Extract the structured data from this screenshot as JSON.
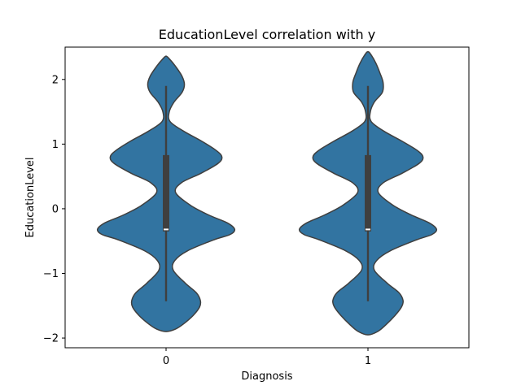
{
  "chart_data": {
    "type": "violin",
    "title": "EducationLevel correlation with y",
    "xlabel": "Diagnosis",
    "ylabel": "EducationLevel",
    "categories": [
      "0",
      "1"
    ],
    "xtick_labels": [
      "0",
      "1"
    ],
    "ylim": [
      -2.15,
      2.5
    ],
    "yticks": [
      -2,
      -1,
      0,
      1,
      2
    ],
    "ytick_labels": [
      "−2",
      "−1",
      "0",
      "1",
      "2"
    ],
    "grid": false,
    "legend": "none",
    "colors": {
      "fill": "#3274a1",
      "edge": "#3f3f3f",
      "box": "#3f3f3f",
      "median": "#ffffff"
    },
    "violins": [
      {
        "category": "0",
        "min": -1.43,
        "q1": -0.35,
        "median": -0.32,
        "q3": 0.83,
        "max": 1.9,
        "kde_extent": [
          -1.9,
          2.36
        ],
        "profile": [
          [
            -1.9,
            0.0
          ],
          [
            -1.86,
            0.12
          ],
          [
            -1.78,
            0.22
          ],
          [
            -1.65,
            0.34
          ],
          [
            -1.52,
            0.42
          ],
          [
            -1.42,
            0.43
          ],
          [
            -1.3,
            0.38
          ],
          [
            -1.15,
            0.24
          ],
          [
            -0.95,
            0.09
          ],
          [
            -0.8,
            0.11
          ],
          [
            -0.65,
            0.27
          ],
          [
            -0.48,
            0.6
          ],
          [
            -0.4,
            0.8
          ],
          [
            -0.32,
            0.86
          ],
          [
            -0.22,
            0.77
          ],
          [
            -0.1,
            0.54
          ],
          [
            0.05,
            0.31
          ],
          [
            0.25,
            0.12
          ],
          [
            0.4,
            0.19
          ],
          [
            0.55,
            0.44
          ],
          [
            0.7,
            0.65
          ],
          [
            0.8,
            0.7
          ],
          [
            0.9,
            0.63
          ],
          [
            1.05,
            0.44
          ],
          [
            1.2,
            0.22
          ],
          [
            1.35,
            0.05
          ],
          [
            1.5,
            0.04
          ],
          [
            1.65,
            0.1
          ],
          [
            1.8,
            0.2
          ],
          [
            1.92,
            0.23
          ],
          [
            2.05,
            0.2
          ],
          [
            2.2,
            0.12
          ],
          [
            2.32,
            0.04
          ],
          [
            2.36,
            0.0
          ]
        ]
      },
      {
        "category": "1",
        "min": -1.43,
        "q1": -0.35,
        "median": -0.32,
        "q3": 0.83,
        "max": 1.9,
        "kde_extent": [
          -1.95,
          2.43
        ],
        "profile": [
          [
            -1.95,
            0.0
          ],
          [
            -1.9,
            0.12
          ],
          [
            -1.8,
            0.22
          ],
          [
            -1.65,
            0.34
          ],
          [
            -1.52,
            0.42
          ],
          [
            -1.42,
            0.44
          ],
          [
            -1.3,
            0.39
          ],
          [
            -1.15,
            0.24
          ],
          [
            -0.95,
            0.08
          ],
          [
            -0.8,
            0.11
          ],
          [
            -0.65,
            0.28
          ],
          [
            -0.48,
            0.61
          ],
          [
            -0.4,
            0.8
          ],
          [
            -0.32,
            0.86
          ],
          [
            -0.22,
            0.77
          ],
          [
            -0.1,
            0.55
          ],
          [
            0.05,
            0.32
          ],
          [
            0.25,
            0.13
          ],
          [
            0.4,
            0.19
          ],
          [
            0.55,
            0.43
          ],
          [
            0.7,
            0.64
          ],
          [
            0.8,
            0.69
          ],
          [
            0.9,
            0.62
          ],
          [
            1.05,
            0.42
          ],
          [
            1.2,
            0.2
          ],
          [
            1.35,
            0.04
          ],
          [
            1.5,
            0.03
          ],
          [
            1.65,
            0.08
          ],
          [
            1.8,
            0.18
          ],
          [
            1.95,
            0.19
          ],
          [
            2.1,
            0.15
          ],
          [
            2.25,
            0.1
          ],
          [
            2.38,
            0.04
          ],
          [
            2.43,
            0.0
          ]
        ]
      }
    ]
  }
}
